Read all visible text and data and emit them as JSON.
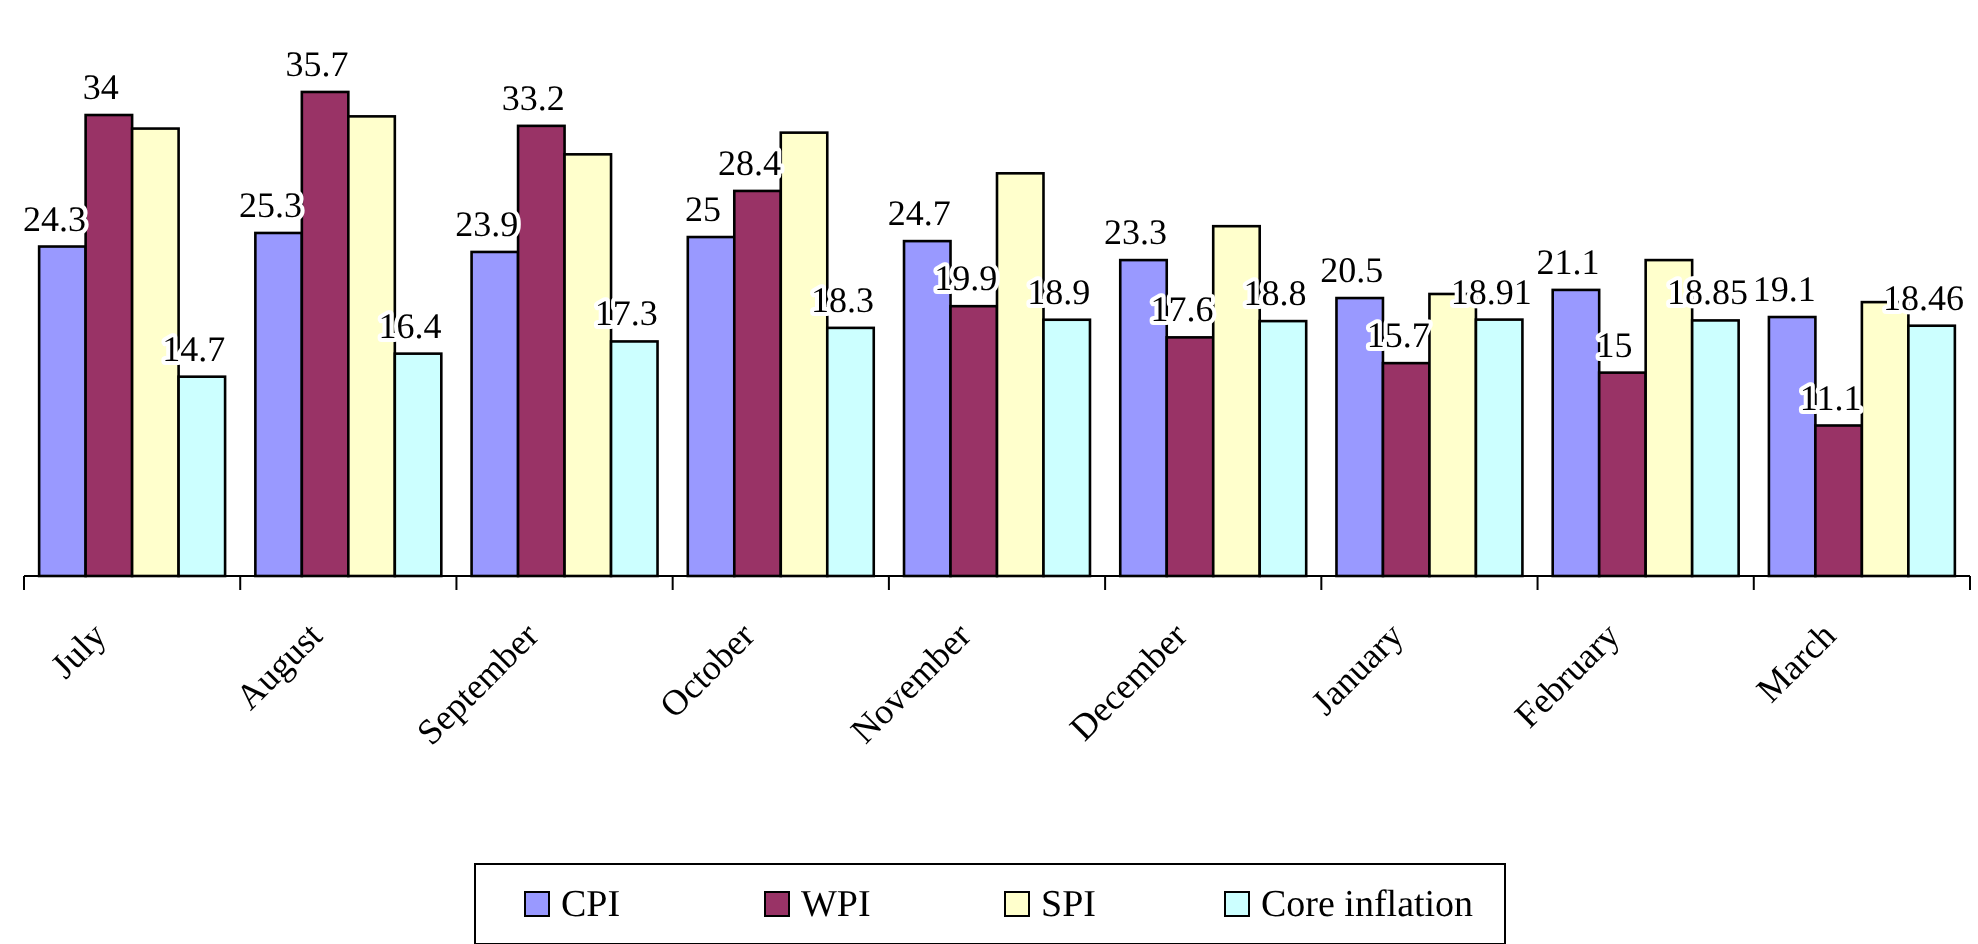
{
  "chart_data": {
    "type": "bar",
    "categories": [
      "July",
      "August",
      "September",
      "October",
      "November",
      "December",
      "January",
      "February",
      "March"
    ],
    "series": [
      {
        "name": "CPI",
        "color": "#9999ff",
        "values": [
          24.3,
          25.3,
          23.9,
          25,
          24.7,
          23.3,
          20.5,
          21.1,
          19.1
        ],
        "value_labels": [
          "24.3",
          "25.3",
          "23.9",
          "25",
          "24.7",
          "23.3",
          "20.5",
          "21.1",
          "19.1"
        ]
      },
      {
        "name": "WPI",
        "color": "#993366",
        "values": [
          34,
          35.7,
          33.2,
          28.4,
          19.9,
          17.6,
          15.7,
          15,
          11.1
        ],
        "value_labels": [
          "34",
          "35.7",
          "33.2",
          "28.4",
          "19.9",
          "17.6",
          "15.7",
          "15",
          "11.1"
        ]
      },
      {
        "name": "SPI",
        "color": "#ffffcc",
        "values": [
          33.0,
          33.9,
          31.1,
          32.7,
          29.7,
          25.8,
          20.8,
          23.3,
          20.2
        ]
      },
      {
        "name": "Core inflation",
        "color": "#ccffff",
        "values": [
          14.7,
          16.4,
          17.3,
          18.3,
          18.9,
          18.8,
          18.91,
          18.85,
          18.46
        ],
        "value_labels": [
          "14.7",
          "16.4",
          "17.3",
          "18.3",
          "18.9",
          "18.8",
          "18.91",
          "18.85",
          "18.46"
        ]
      }
    ],
    "tick_labels": "x",
    "legend": "bottom"
  }
}
